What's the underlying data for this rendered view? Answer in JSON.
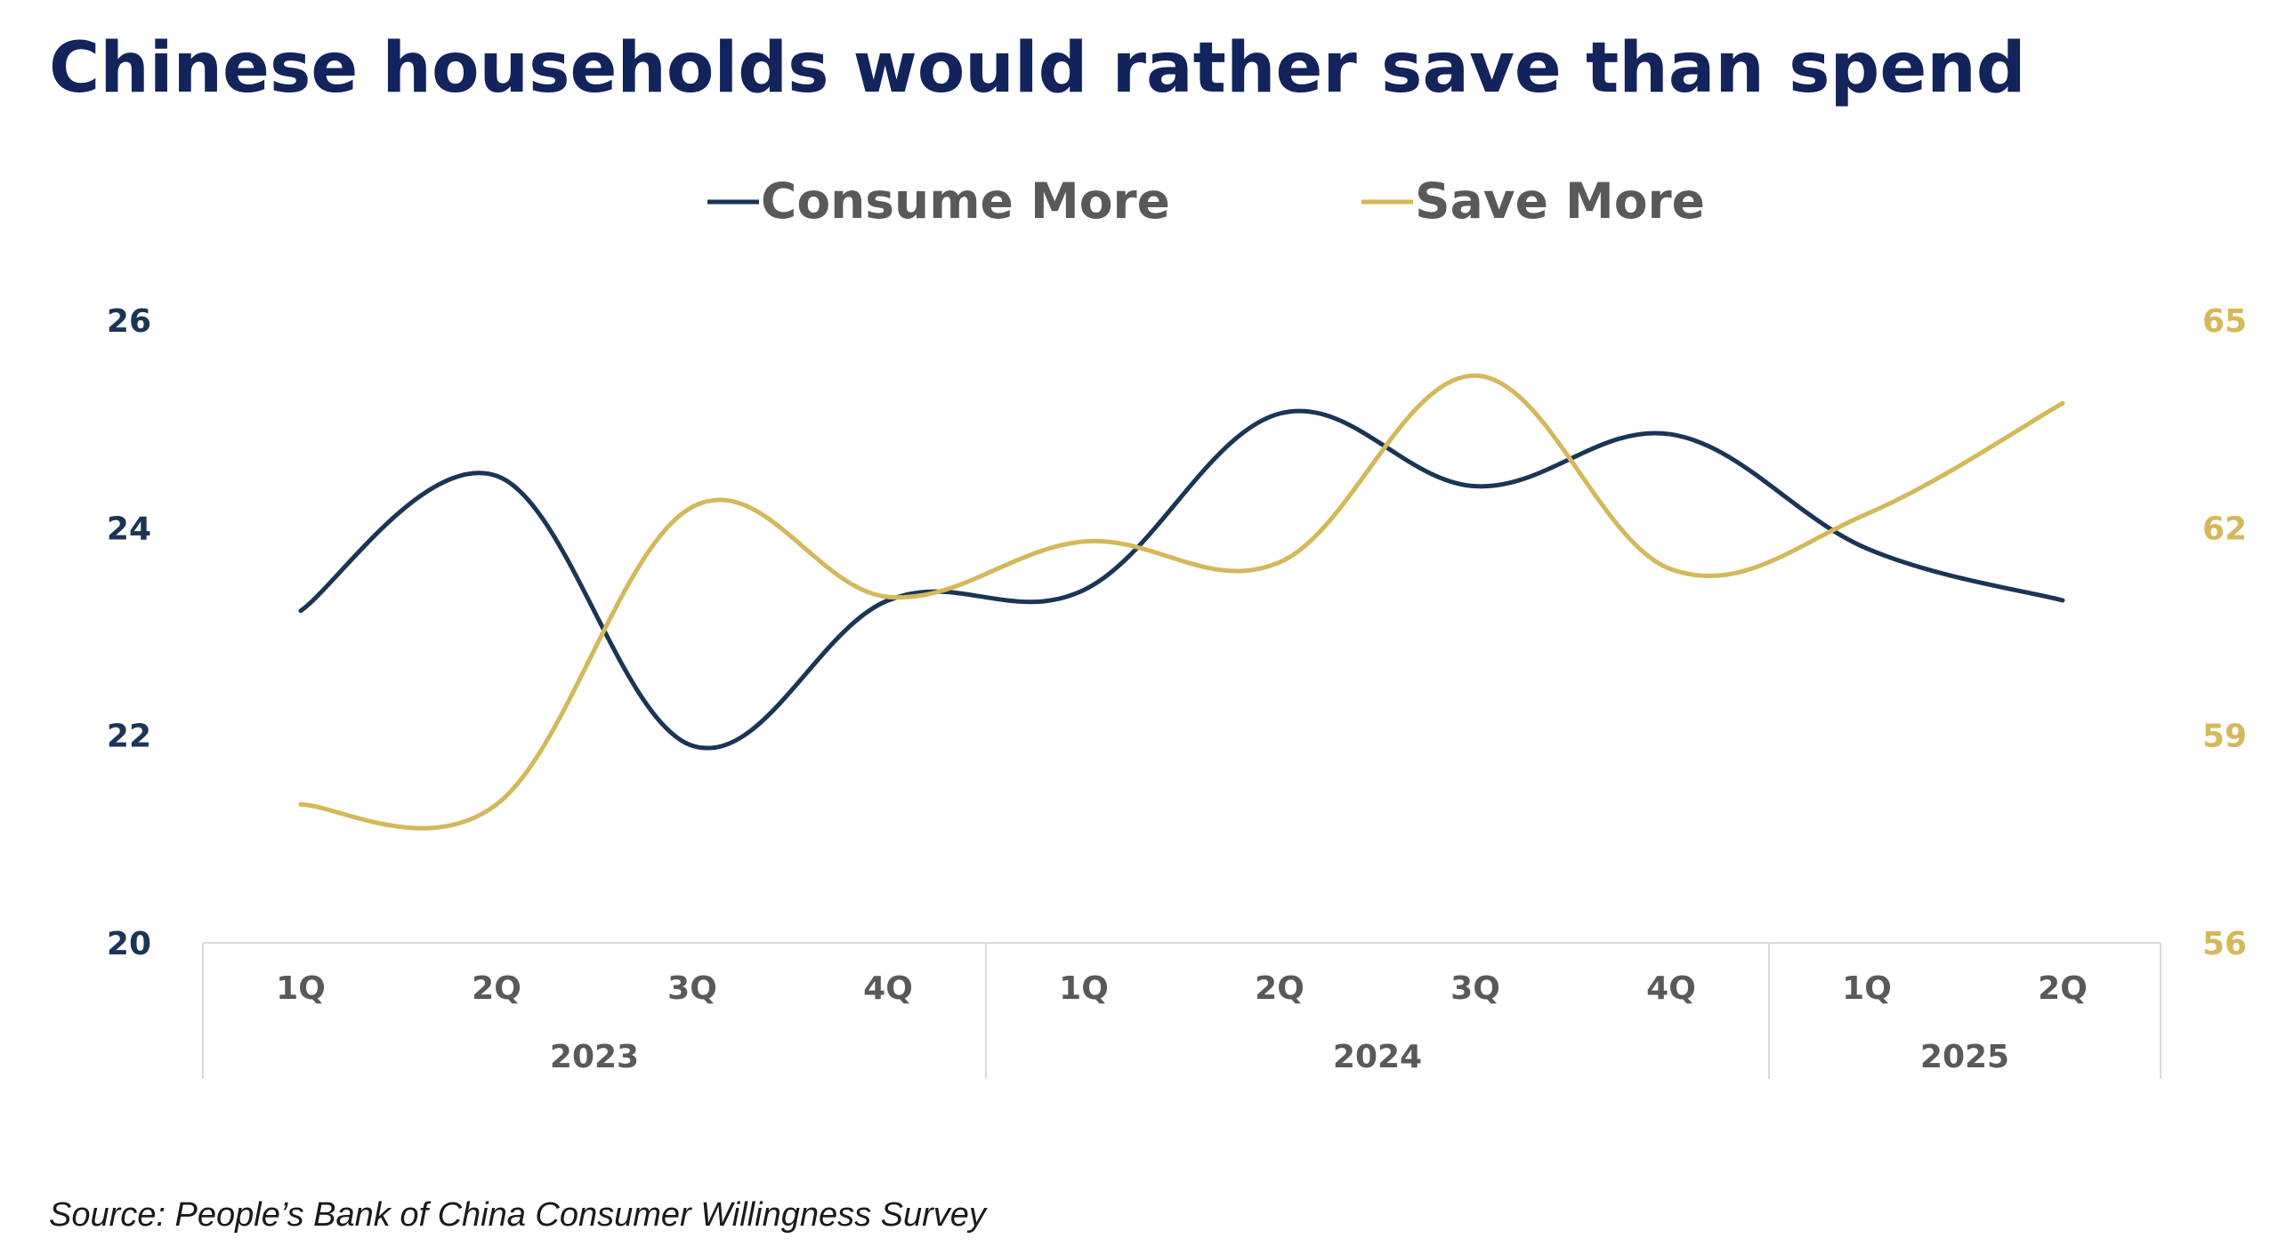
{
  "chart_data": {
    "type": "line",
    "title": "Chinese households would rather save than spend",
    "categories": [
      "1Q",
      "2Q",
      "3Q",
      "4Q",
      "1Q",
      "2Q",
      "3Q",
      "4Q",
      "1Q",
      "2Q"
    ],
    "groups": [
      {
        "label": "2023",
        "count": 4
      },
      {
        "label": "2024",
        "count": 4
      },
      {
        "label": "2025",
        "count": 2
      }
    ],
    "series": [
      {
        "name": "Consume More",
        "axis": "left",
        "color": "#1b3557",
        "values": [
          23.2,
          24.5,
          21.9,
          23.3,
          23.4,
          25.1,
          24.4,
          24.9,
          23.8,
          23.3
        ]
      },
      {
        "name": "Save More",
        "axis": "right",
        "color": "#d4b85a",
        "values": [
          58.0,
          58.0,
          62.3,
          61.0,
          61.8,
          61.5,
          64.2,
          61.4,
          62.2,
          63.8
        ]
      }
    ],
    "yleft": {
      "min": 20,
      "max": 26,
      "ticks": [
        "26",
        "24",
        "22",
        "20"
      ]
    },
    "yright": {
      "min": 56,
      "max": 65,
      "ticks": [
        "65",
        "62",
        "59",
        "56"
      ]
    },
    "legend_position": "top-center",
    "grid": false
  },
  "source": "Source: People’s Bank of China Consumer Willingness Survey"
}
